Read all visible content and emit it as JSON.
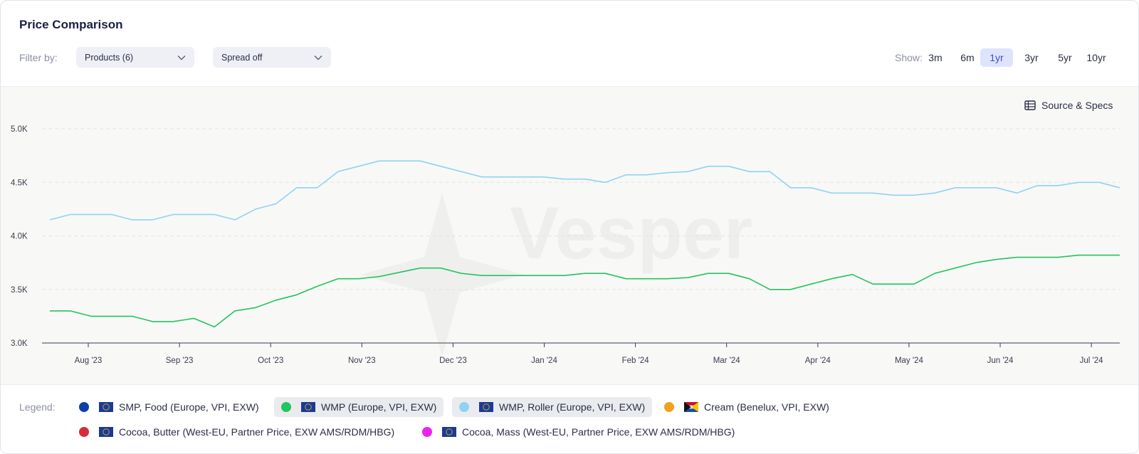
{
  "header": {
    "title": "Price Comparison"
  },
  "filters": {
    "label": "Filter by:",
    "products": "Products (6)",
    "spread": "Spread off"
  },
  "show": {
    "label": "Show:",
    "ranges": [
      "3m",
      "6m",
      "1yr",
      "3yr",
      "5yr",
      "10yr"
    ],
    "active": "1yr"
  },
  "toolbar": {
    "source_label": "Source & Specs"
  },
  "watermark": "Vesper",
  "legend": {
    "label": "Legend:",
    "items": [
      {
        "name": "SMP, Food (Europe, VPI, EXW)",
        "color": "#0d3ea8",
        "flag": "eu",
        "active": false
      },
      {
        "name": "WMP (Europe, VPI, EXW)",
        "color": "#22c55e",
        "flag": "eu",
        "active": true
      },
      {
        "name": "WMP, Roller (Europe, VPI, EXW)",
        "color": "#8fd3f2",
        "flag": "eu",
        "active": true
      },
      {
        "name": "Cream (Benelux, VPI, EXW)",
        "color": "#f0a11e",
        "flag": "benelux",
        "active": false
      },
      {
        "name": "Cocoa, Butter (West-EU, Partner Price, EXW AMS/RDM/HBG)",
        "color": "#d62c3a",
        "flag": "eu",
        "active": false
      },
      {
        "name": "Cocoa, Mass (West-EU, Partner Price, EXW AMS/RDM/HBG)",
        "color": "#ee22ee",
        "flag": "eu",
        "active": false
      }
    ]
  },
  "chart_data": {
    "type": "line",
    "x_tick_labels": [
      "Aug '23",
      "Sep '23",
      "Oct '23",
      "Nov '23",
      "Dec '23",
      "Jan '24",
      "Feb '24",
      "Mar '24",
      "Apr '24",
      "May '24",
      "Jun '24",
      "Jul '24"
    ],
    "y_tick_labels": [
      "3.0K",
      "3.5K",
      "4.0K",
      "4.5K",
      "5.0K"
    ],
    "ylim": [
      3000,
      5000
    ],
    "grid": "horizontal dashed",
    "series": [
      {
        "name": "WMP, Roller (Europe, VPI, EXW)",
        "color": "#8fd3f2",
        "values": [
          4150,
          4200,
          4200,
          4200,
          4150,
          4150,
          4200,
          4200,
          4200,
          4150,
          4250,
          4300,
          4450,
          4450,
          4600,
          4650,
          4700,
          4700,
          4700,
          4650,
          4600,
          4550,
          4550,
          4550,
          4550,
          4530,
          4530,
          4500,
          4570,
          4570,
          4590,
          4600,
          4650,
          4650,
          4600,
          4600,
          4450,
          4450,
          4400,
          4400,
          4400,
          4380,
          4380,
          4400,
          4450,
          4450,
          4450,
          4400,
          4470,
          4470,
          4500,
          4500,
          4450
        ]
      },
      {
        "name": "WMP (Europe, VPI, EXW)",
        "color": "#22c55e",
        "values": [
          3300,
          3300,
          3250,
          3250,
          3250,
          3200,
          3200,
          3230,
          3150,
          3300,
          3330,
          3400,
          3450,
          3530,
          3600,
          3600,
          3620,
          3660,
          3700,
          3700,
          3650,
          3630,
          3630,
          3630,
          3630,
          3630,
          3650,
          3650,
          3600,
          3600,
          3600,
          3610,
          3650,
          3650,
          3600,
          3500,
          3500,
          3550,
          3600,
          3640,
          3550,
          3550,
          3550,
          3650,
          3700,
          3750,
          3780,
          3800,
          3800,
          3800,
          3820,
          3820,
          3820
        ]
      }
    ]
  }
}
